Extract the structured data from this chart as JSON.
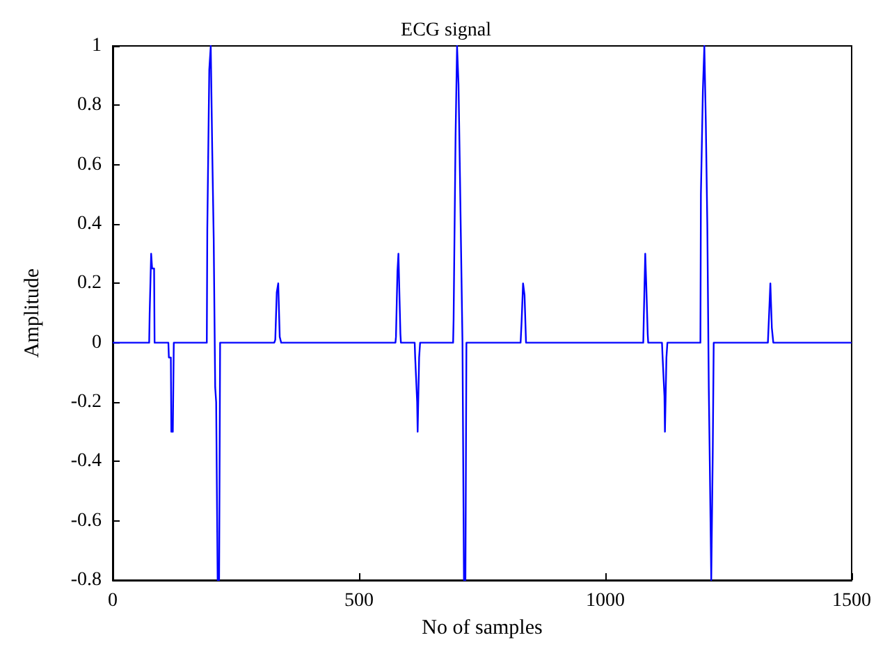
{
  "chart_data": {
    "type": "line",
    "title": "ECG signal",
    "xlabel": "No of samples",
    "ylabel": "Amplitude",
    "xlim": [
      0,
      1500
    ],
    "xticks": [
      0,
      500,
      1000,
      1500
    ],
    "ylim": [
      -0.8,
      1
    ],
    "yticks": [
      -0.8,
      -0.6,
      -0.4,
      -0.2,
      0,
      0.2,
      0.4,
      0.6,
      0.8,
      1
    ],
    "grid": false,
    "marker": "none",
    "line_style": "solid",
    "series": [
      {
        "color": "#0000ff",
        "x": [
          0,
          74,
          75,
          78,
          80,
          84,
          85,
          113,
          114,
          118,
          119,
          122,
          124,
          191,
          192,
          196,
          199,
          202,
          205,
          208,
          210,
          213,
          216,
          218,
          328,
          330,
          333,
          336,
          339,
          342,
          574,
          575,
          578,
          580,
          584,
          585,
          613,
          614,
          618,
          619,
          622,
          624,
          691,
          692,
          696,
          699,
          702,
          705,
          708,
          710,
          713,
          716,
          718,
          828,
          830,
          833,
          836,
          839,
          842,
          1077,
          1078,
          1081,
          1083,
          1086,
          1087,
          1115,
          1116,
          1120,
          1121,
          1124,
          1126,
          1193,
          1194,
          1198,
          1201,
          1204,
          1207,
          1210,
          1212,
          1215,
          1218,
          1220,
          1330,
          1332,
          1335,
          1338,
          1341,
          1344,
          1500
        ],
        "values": [
          0,
          0,
          0.1,
          0.3,
          0.25,
          0.25,
          0,
          0,
          -0.05,
          -0.05,
          -0.3,
          -0.3,
          0,
          0,
          0.38,
          0.92,
          1,
          0.65,
          0.35,
          -0.15,
          -0.2,
          -0.8,
          -0.8,
          0,
          0,
          0.01,
          0.17,
          0.2,
          0.02,
          0,
          0,
          0.02,
          0.24,
          0.3,
          0.03,
          0,
          0,
          -0.05,
          -0.2,
          -0.3,
          -0.05,
          0,
          0,
          0.08,
          0.7,
          1,
          0.87,
          0.55,
          0.22,
          0,
          -0.8,
          -0.8,
          0,
          0,
          0.07,
          0.2,
          0.16,
          0,
          0,
          0,
          0.08,
          0.3,
          0.2,
          0.03,
          0,
          0,
          -0.04,
          -0.18,
          -0.3,
          -0.05,
          0,
          0,
          0.5,
          0.85,
          1,
          0.74,
          0.4,
          -0.15,
          -0.4,
          -0.8,
          -0.38,
          0,
          0,
          0.08,
          0.2,
          0.05,
          0,
          0,
          0
        ]
      }
    ]
  }
}
